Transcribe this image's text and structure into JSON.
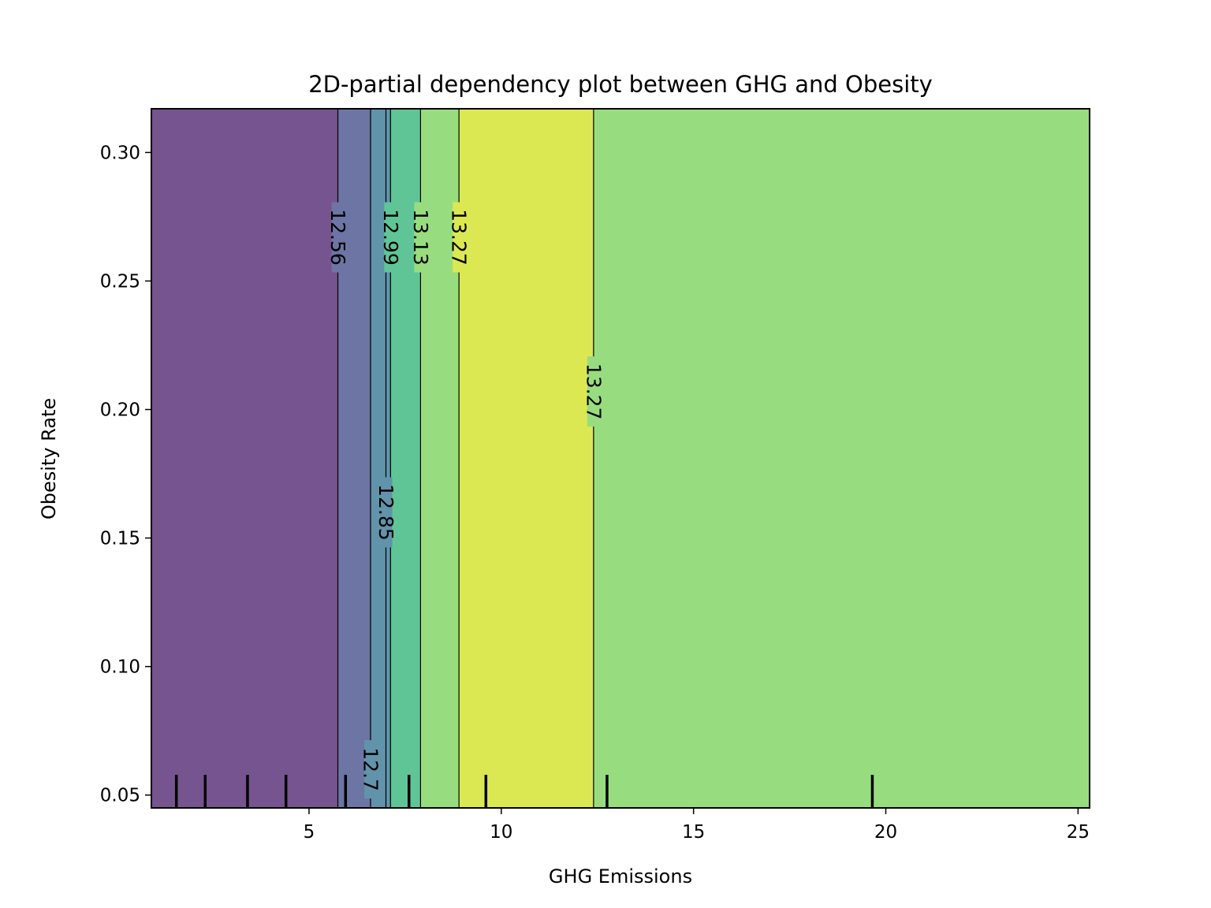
{
  "chart_data": {
    "type": "heatmap",
    "subtype": "filled-contour",
    "title": "2D-partial dependency plot between GHG and Obesity",
    "xlabel": "GHG Emissions",
    "ylabel": "Obesity Rate",
    "xlim": [
      0.9,
      25.3
    ],
    "ylim": [
      0.045,
      0.317
    ],
    "xticks": [
      5,
      10,
      15,
      20,
      25
    ],
    "xtick_labels": [
      "5",
      "10",
      "15",
      "20",
      "25"
    ],
    "yticks": [
      0.05,
      0.1,
      0.15,
      0.2,
      0.25,
      0.3
    ],
    "ytick_labels": [
      "0.05",
      "0.10",
      "0.15",
      "0.20",
      "0.25",
      "0.30"
    ],
    "grid": false,
    "colormap": "viridis",
    "bands": [
      {
        "x0": 0.9,
        "x1": 5.75,
        "color": "#76548f"
      },
      {
        "x0": 5.75,
        "x1": 6.6,
        "color": "#6c75a4"
      },
      {
        "x0": 6.6,
        "x1": 7.12,
        "color": "#6193ab"
      },
      {
        "x0": 7.12,
        "x1": 7.9,
        "color": "#5fc597"
      },
      {
        "x0": 7.9,
        "x1": 8.9,
        "color": "#97dd80"
      },
      {
        "x0": 8.9,
        "x1": 12.4,
        "color": "#dce852"
      },
      {
        "x0": 12.4,
        "x1": 25.3,
        "color": "#97dd80"
      }
    ],
    "contour_lines": [
      5.75,
      6.6,
      7.0,
      7.12,
      7.9,
      8.9,
      12.4
    ],
    "contour_labels": [
      {
        "text": "12.56",
        "x": 5.75,
        "y": 0.267
      },
      {
        "text": "12.99",
        "x": 7.12,
        "y": 0.267
      },
      {
        "text": "13.13",
        "x": 7.9,
        "y": 0.267
      },
      {
        "text": "13.27",
        "x": 8.9,
        "y": 0.267
      },
      {
        "text": "13.27",
        "x": 12.4,
        "y": 0.207
      },
      {
        "text": "12.85",
        "x": 7.0,
        "y": 0.16
      },
      {
        "text": "12.7",
        "x": 6.6,
        "y": 0.06
      }
    ],
    "rug_x": [
      1.55,
      2.3,
      3.4,
      4.4,
      5.95,
      7.6,
      9.6,
      12.75,
      19.65
    ]
  }
}
